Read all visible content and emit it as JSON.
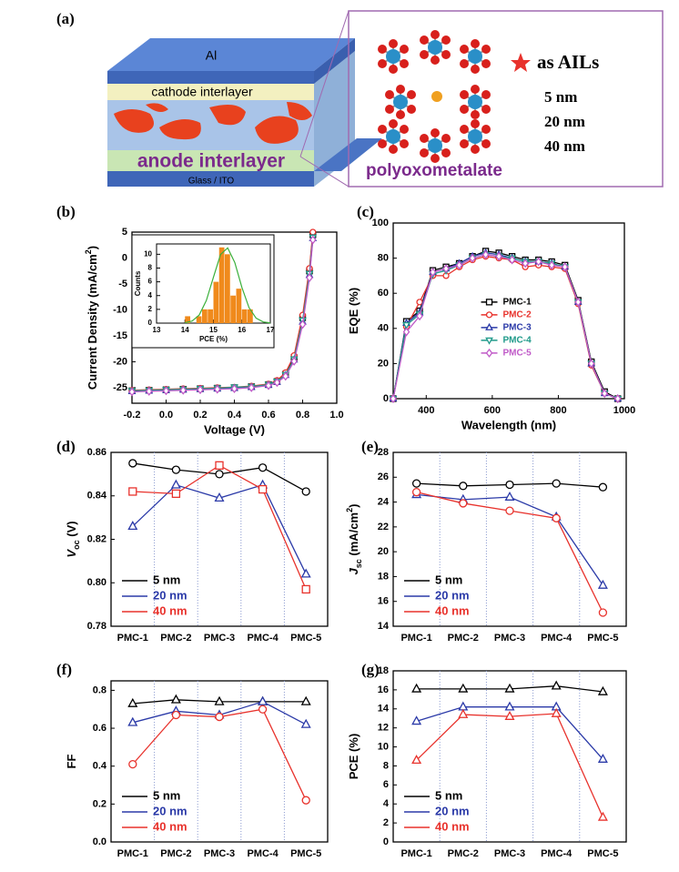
{
  "diagram": {
    "panel": "(a)",
    "layers": [
      "Al",
      "cathode interlayer",
      "anode interlayer",
      "Glass / ITO"
    ],
    "molecule_label": "polyoxometalate",
    "legend_label": "as AILs",
    "thicknesses": [
      "5  nm",
      "20 nm",
      "40 nm"
    ]
  },
  "chart_data": [
    {
      "type": "line",
      "panel": "(b)",
      "xlabel": "Voltage (V)",
      "ylabel": [
        "Current Density (mA/cm",
        "2",
        ")"
      ],
      "ylabel_style": [
        "normal",
        "sup",
        "normal"
      ],
      "xlim": [
        -0.2,
        1.0
      ],
      "xticks": [
        -0.2,
        {
          "value": 0,
          "label": "0.0"
        },
        0.2,
        0.4,
        0.6,
        0.8,
        {
          "value": 1,
          "label": "1.0"
        }
      ],
      "ylim": [
        -28,
        5
      ],
      "yticks": [
        5,
        0,
        -5,
        -10,
        -15,
        -20,
        -25
      ],
      "x": [
        -0.2,
        -0.1,
        0,
        0.1,
        0.2,
        0.3,
        0.4,
        0.5,
        0.6,
        0.65,
        0.7,
        0.75,
        0.8,
        0.84,
        0.86
      ],
      "series": [
        {
          "name": "PMC-1",
          "color": "#000000",
          "marker": "square",
          "values": [
            -25.6,
            -25.5,
            -25.4,
            -25.3,
            -25.2,
            -25.1,
            -25.0,
            -24.8,
            -24.4,
            -23.8,
            -22.4,
            -19.2,
            -11.5,
            -2.5,
            4.5
          ]
        },
        {
          "name": "PMC-2",
          "color": "#e8322c",
          "marker": "circle",
          "values": [
            -25.5,
            -25.4,
            -25.3,
            -25.2,
            -25.1,
            -25.0,
            -24.9,
            -24.7,
            -24.3,
            -23.6,
            -22.1,
            -18.8,
            -11.0,
            -2.0,
            5.0
          ]
        },
        {
          "name": "PMC-3",
          "color": "#2b3aa8",
          "marker": "triangle",
          "values": [
            -25.7,
            -25.6,
            -25.5,
            -25.4,
            -25.3,
            -25.2,
            -25.1,
            -24.9,
            -24.5,
            -23.9,
            -22.6,
            -19.6,
            -12.3,
            -3.3,
            3.8
          ]
        },
        {
          "name": "PMC-4",
          "color": "#1f9a8a",
          "marker": "tri-down",
          "values": [
            -25.6,
            -25.5,
            -25.4,
            -25.3,
            -25.2,
            -25.1,
            -24.9,
            -24.8,
            -24.4,
            -23.8,
            -22.5,
            -19.5,
            -12.0,
            -3.0,
            4.0
          ]
        },
        {
          "name": "PMC-5",
          "color": "#c05ac8",
          "marker": "diamond",
          "values": [
            -25.8,
            -25.7,
            -25.6,
            -25.5,
            -25.4,
            -25.3,
            -25.2,
            -25.0,
            -24.6,
            -24.0,
            -22.8,
            -19.9,
            -12.8,
            -3.8,
            3.5
          ]
        }
      ]
    },
    {
      "type": "histogram",
      "xlabel": "PCE (%)",
      "ylabel": [
        "Counts"
      ],
      "ylabel_style": [
        "normal"
      ],
      "xlim": [
        13,
        17
      ],
      "xticks": [
        13,
        14,
        15,
        16,
        17
      ],
      "ylim": [
        0,
        11.5
      ],
      "yticks": [
        0,
        2,
        4,
        6,
        8,
        10
      ],
      "bins": [
        14,
        14.2,
        14.4,
        14.6,
        14.8,
        15,
        15.2,
        15.4,
        15.6,
        15.8,
        16,
        16.2,
        16.4
      ],
      "counts": [
        1,
        0,
        1,
        2,
        2,
        6,
        11,
        10,
        4,
        5,
        2,
        2
      ],
      "color": "#f08a1c",
      "fit": {
        "color": "#3bb03b",
        "x": [
          14,
          14.25,
          14.5,
          14.75,
          15,
          15.25,
          15.5,
          15.75,
          16,
          16.25,
          16.5,
          16.75,
          17
        ],
        "values": [
          0.06,
          0.31,
          1.18,
          3.28,
          6.67,
          9.97,
          10.93,
          8.81,
          5.2,
          2.26,
          0.72,
          0.17,
          0.03
        ]
      }
    },
    {
      "type": "line",
      "panel": "(c)",
      "xlabel": "Wavelength (nm)",
      "ylabel": [
        "EQE (%)"
      ],
      "ylabel_style": [
        "normal"
      ],
      "xlim": [
        300,
        1000
      ],
      "xticks": [
        400,
        600,
        800,
        1000
      ],
      "ylim": [
        0,
        100
      ],
      "yticks": [
        0,
        20,
        40,
        60,
        80,
        100
      ],
      "legend": "center",
      "x": [
        300,
        340,
        380,
        420,
        460,
        500,
        540,
        580,
        620,
        660,
        700,
        740,
        780,
        820,
        860,
        900,
        940,
        980
      ],
      "series": [
        {
          "name": "PMC-1",
          "color": "#000000",
          "marker": "square",
          "values": [
            0,
            44,
            50,
            73,
            75,
            77,
            81,
            84,
            83,
            81,
            79,
            79,
            78,
            76,
            56,
            21,
            4,
            0
          ]
        },
        {
          "name": "PMC-2",
          "color": "#e8322c",
          "marker": "circle",
          "values": [
            0,
            41,
            55,
            70,
            70,
            75,
            79,
            81,
            80,
            79,
            75,
            76,
            75,
            74,
            54,
            19,
            3,
            0
          ]
        },
        {
          "name": "PMC-3",
          "color": "#2b3aa8",
          "marker": "triangle",
          "values": [
            0,
            43,
            49,
            72,
            74,
            77,
            81,
            83,
            82,
            80,
            78,
            78,
            77,
            75,
            55,
            20,
            3,
            0
          ]
        },
        {
          "name": "PMC-4",
          "color": "#1f9a8a",
          "marker": "tri-down",
          "values": [
            0,
            42,
            48,
            71,
            73,
            76,
            80,
            82,
            81,
            80,
            78,
            78,
            77,
            75,
            55,
            20,
            3,
            0
          ]
        },
        {
          "name": "PMC-5",
          "color": "#c05ac8",
          "marker": "diamond",
          "values": [
            0,
            38,
            47,
            72,
            74,
            76,
            80,
            82,
            81,
            79,
            77,
            78,
            76,
            75,
            55,
            20,
            3,
            0
          ]
        }
      ]
    },
    {
      "type": "line",
      "panel": "(d)",
      "ylabel": [
        "V",
        "oc",
        " (V)"
      ],
      "ylabel_style": [
        "italic",
        "sub",
        "normal"
      ],
      "categories": [
        "PMC-1",
        "PMC-2",
        "PMC-3",
        "PMC-4",
        "PMC-5"
      ],
      "ylim": [
        0.78,
        0.86
      ],
      "yticks": [
        0.78,
        {
          "value": 0.8,
          "label": "0.80"
        },
        0.82,
        0.84,
        0.86
      ],
      "legend": "lower left",
      "series": [
        {
          "name": "5 nm",
          "color": "#000000",
          "marker": "circle",
          "values": [
            0.855,
            0.852,
            0.85,
            0.853,
            0.842
          ]
        },
        {
          "name": "20 nm",
          "color": "#2b3aa8",
          "marker": "triangle",
          "values": [
            0.826,
            0.845,
            0.839,
            0.845,
            0.804
          ]
        },
        {
          "name": "40 nm",
          "color": "#e8322c",
          "marker": "square",
          "values": [
            0.842,
            0.841,
            0.854,
            0.843,
            0.797
          ]
        }
      ]
    },
    {
      "type": "line",
      "panel": "(e)",
      "ylabel": [
        "J",
        "sc",
        " (mA/cm",
        "2",
        ")"
      ],
      "ylabel_style": [
        "italic",
        "sub",
        "normal",
        "sup",
        "normal"
      ],
      "categories": [
        "PMC-1",
        "PMC-2",
        "PMC-3",
        "PMC-4",
        "PMC-5"
      ],
      "ylim": [
        14,
        28
      ],
      "yticks": [
        14,
        16,
        18,
        20,
        22,
        24,
        26,
        28
      ],
      "legend": "lower left",
      "series": [
        {
          "name": "5 nm",
          "color": "#000000",
          "marker": "circle",
          "values": [
            25.5,
            25.3,
            25.4,
            25.5,
            25.2
          ]
        },
        {
          "name": "20 nm",
          "color": "#2b3aa8",
          "marker": "triangle",
          "values": [
            24.6,
            24.2,
            24.4,
            22.8,
            17.3
          ]
        },
        {
          "name": "40 nm",
          "color": "#e8322c",
          "marker": "circle",
          "values": [
            24.8,
            23.9,
            23.3,
            22.7,
            15.1
          ]
        }
      ]
    },
    {
      "type": "line",
      "panel": "(f)",
      "ylabel": [
        "FF"
      ],
      "ylabel_style": [
        "normal"
      ],
      "categories": [
        "PMC-1",
        "PMC-2",
        "PMC-3",
        "PMC-4",
        "PMC-5"
      ],
      "ylim": [
        0,
        0.85
      ],
      "yticks": [
        {
          "value": 0,
          "label": "0.0"
        },
        0.2,
        0.4,
        0.6,
        0.8
      ],
      "legend": "lower left",
      "series": [
        {
          "name": "5 nm",
          "color": "#000000",
          "marker": "triangle",
          "values": [
            0.73,
            0.75,
            0.74,
            0.74,
            0.74
          ]
        },
        {
          "name": "20 nm",
          "color": "#2b3aa8",
          "marker": "triangle",
          "values": [
            0.63,
            0.69,
            0.67,
            0.74,
            0.62
          ]
        },
        {
          "name": "40 nm",
          "color": "#e8322c",
          "marker": "circle",
          "values": [
            0.41,
            0.67,
            0.66,
            0.7,
            0.22
          ]
        }
      ]
    },
    {
      "type": "line",
      "panel": "(g)",
      "ylabel": [
        "PCE (%)"
      ],
      "ylabel_style": [
        "normal"
      ],
      "categories": [
        "PMC-1",
        "PMC-2",
        "PMC-3",
        "PMC-4",
        "PMC-5"
      ],
      "ylim": [
        0,
        18
      ],
      "yticks": [
        0,
        2,
        4,
        6,
        8,
        10,
        12,
        14,
        16,
        18
      ],
      "legend": "lower left",
      "series": [
        {
          "name": "5 nm",
          "color": "#000000",
          "marker": "triangle",
          "values": [
            16.1,
            16.1,
            16.1,
            16.4,
            15.8
          ]
        },
        {
          "name": "20 nm",
          "color": "#2b3aa8",
          "marker": "triangle",
          "values": [
            12.7,
            14.2,
            14.2,
            14.2,
            8.7
          ]
        },
        {
          "name": "40 nm",
          "color": "#e8322c",
          "marker": "triangle",
          "values": [
            8.6,
            13.4,
            13.2,
            13.5,
            2.6
          ]
        }
      ]
    }
  ]
}
